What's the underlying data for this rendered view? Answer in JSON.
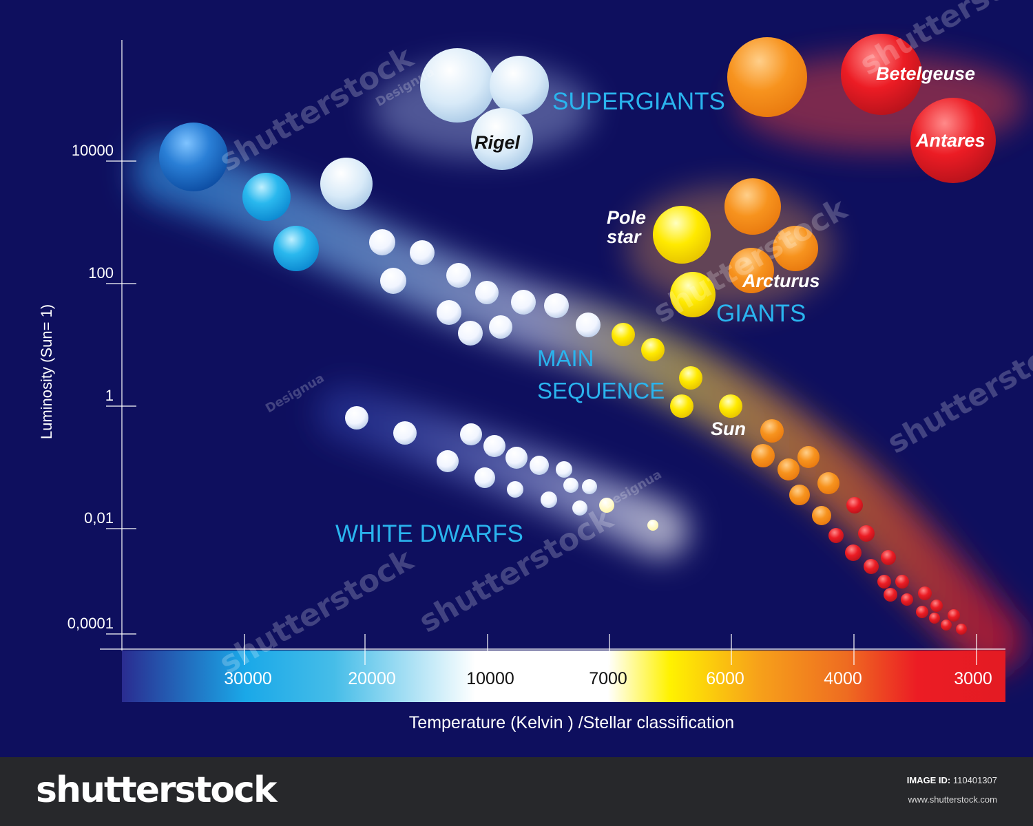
{
  "chart_data": {
    "type": "scatter",
    "title": "",
    "xlabel": "Temperature (Kelvin ) /Stellar classification",
    "ylabel": "Luminosity (Sun= 1)",
    "x_scale": "categorical-temperature",
    "y_scale": "log",
    "x_ticks": [
      "30000",
      "20000",
      "10000",
      "7000",
      "6000",
      "4000",
      "3000"
    ],
    "y_ticks": [
      "10000",
      "100",
      "1",
      "0,01",
      "0,0001"
    ],
    "y_tick_values": [
      10000,
      100,
      1,
      0.01,
      0.0001
    ],
    "grid": false,
    "regions": [
      {
        "name": "SUPERGIANTS"
      },
      {
        "name": "GIANTS"
      },
      {
        "name": "MAIN SEQUENCE"
      },
      {
        "name": "WHITE DWARFS"
      }
    ],
    "named_stars": [
      {
        "name": "Rigel",
        "region": "supergiants"
      },
      {
        "name": "Betelgeuse",
        "region": "supergiants"
      },
      {
        "name": "Antares",
        "region": "supergiants"
      },
      {
        "name": "Pole star",
        "region": "giants"
      },
      {
        "name": "Arcturus",
        "region": "giants"
      },
      {
        "name": "Sun",
        "region": "main sequence",
        "luminosity": 1
      }
    ]
  },
  "footer": {
    "brand": "shutterstock",
    "image_id_label": "IMAGE ID:",
    "image_id": "110401307",
    "site": "www.shutterstock.com"
  },
  "watermark": {
    "text": "shutterstock",
    "credit": "Designua"
  }
}
